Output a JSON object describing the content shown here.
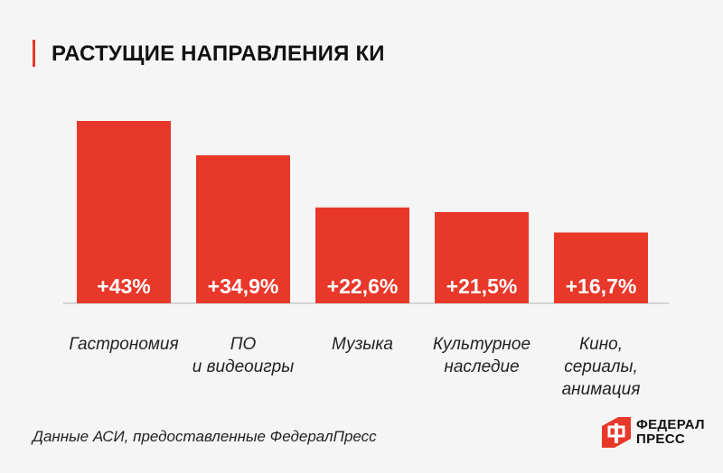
{
  "title": "РАСТУЩИЕ НАПРАВЛЕНИЯ КИ",
  "footer": "Данные АСИ, предоставленные ФедералПресс",
  "logo": {
    "line1": "ФЕДЕРАЛ",
    "line2": "ПРЕСС"
  },
  "colors": {
    "accent": "#e8382a",
    "axis": "#c8c8c8",
    "text": "#111111"
  },
  "chart_data": {
    "type": "bar",
    "title": "РАСТУЩИЕ НАПРАВЛЕНИЯ КИ",
    "xlabel": "",
    "ylabel": "",
    "ylim": [
      0,
      43
    ],
    "grid": false,
    "categories": [
      [
        "Гастрономия"
      ],
      [
        "ПО",
        "и видеоигры"
      ],
      [
        "Музыка"
      ],
      [
        "Культурное",
        "наследие"
      ],
      [
        "Кино,",
        "сериалы,",
        "анимация"
      ]
    ],
    "values": [
      43,
      34.9,
      22.6,
      21.5,
      16.7
    ],
    "data_labels": [
      "+43%",
      "+34,9%",
      "+22,6%",
      "+21,5%",
      "+16,7%"
    ]
  }
}
